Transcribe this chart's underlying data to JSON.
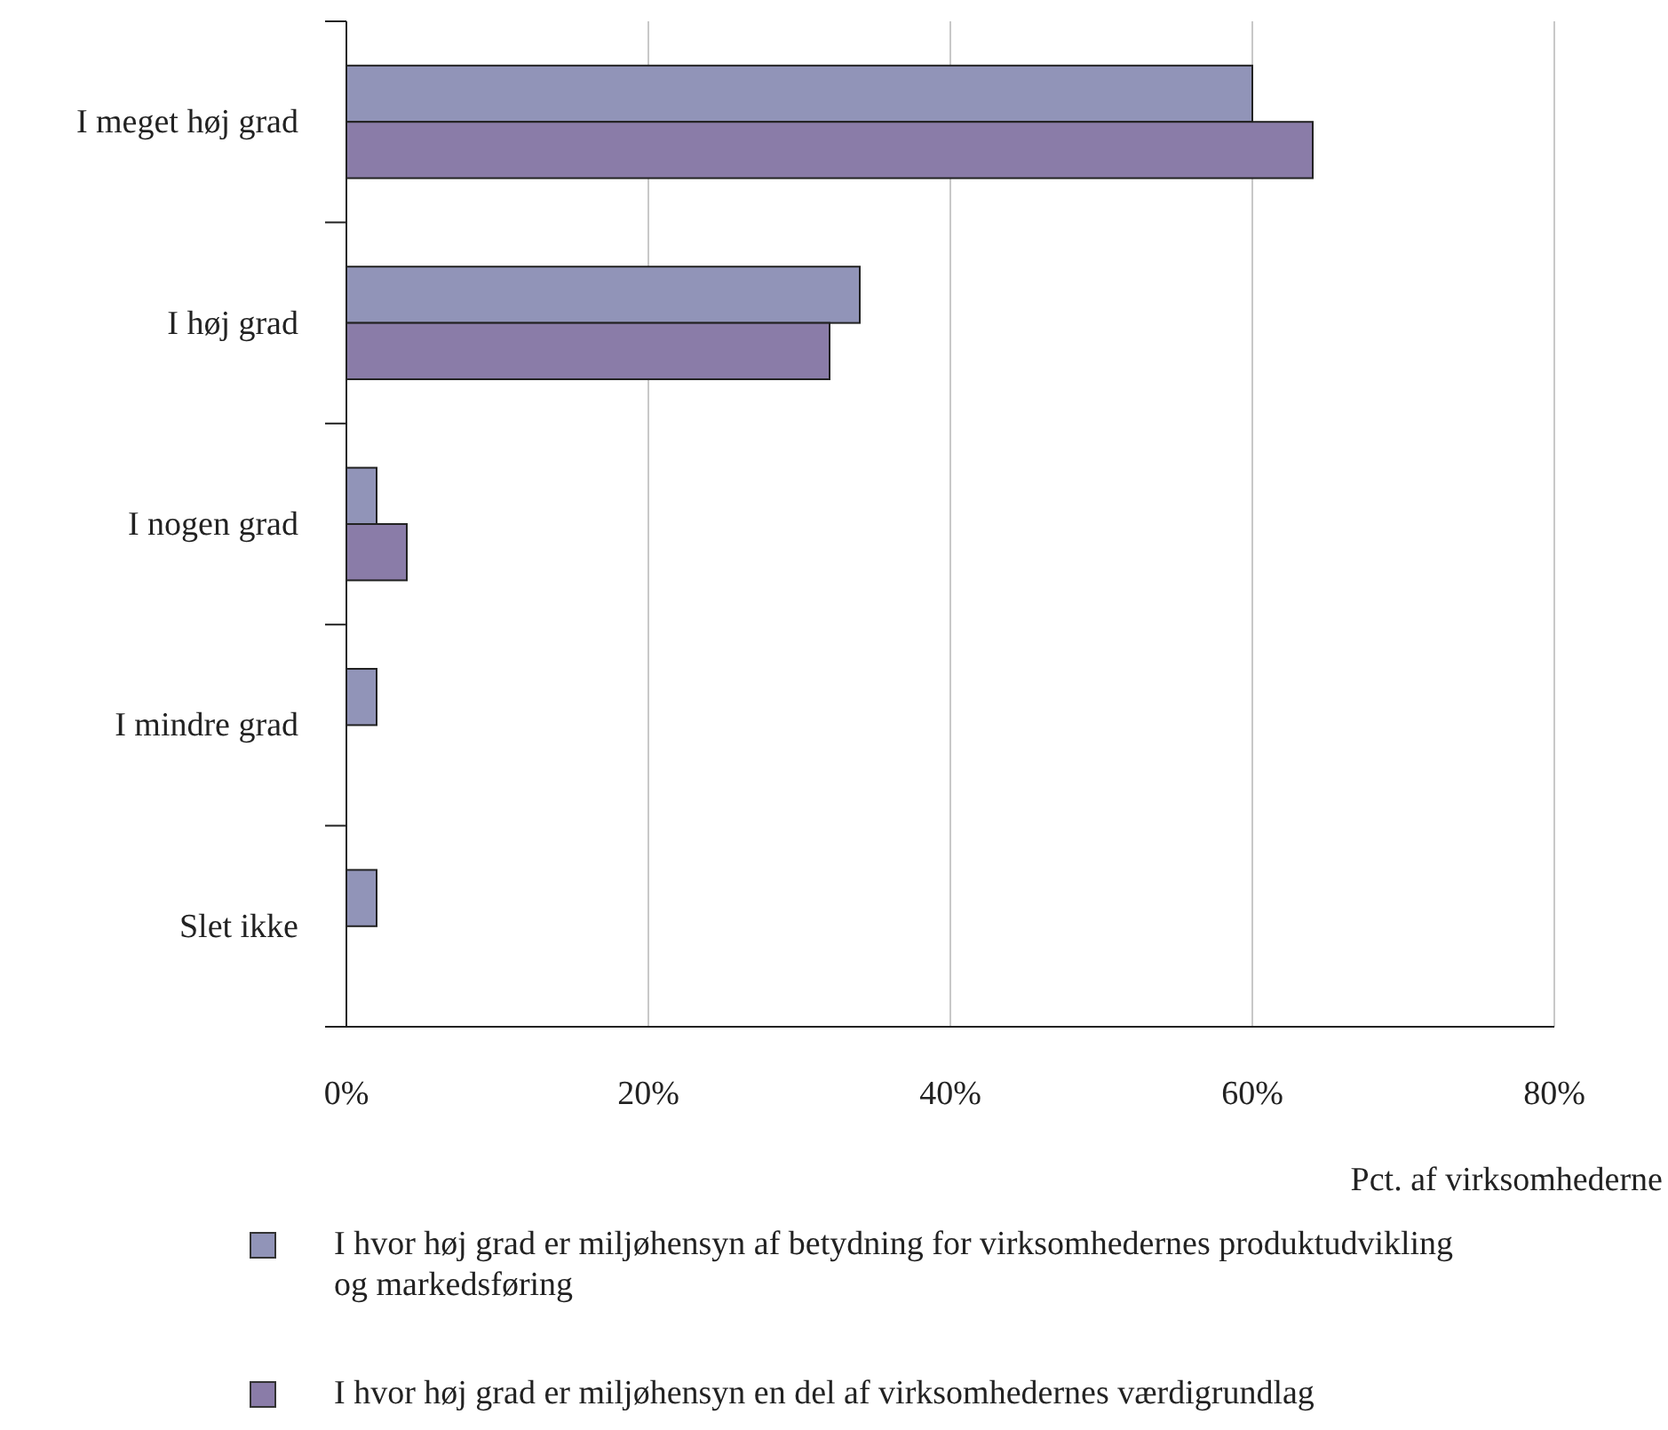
{
  "chart_data": {
    "type": "bar",
    "orientation": "horizontal",
    "categories": [
      "I meget høj grad",
      "I høj grad",
      "I nogen grad",
      "I mindre grad",
      "Slet ikke"
    ],
    "series": [
      {
        "name": "I hvor høj grad er miljøhensyn af betydning for virksomhedernes produktudvikling og markedsføring",
        "color": "#9194b8",
        "values": [
          60,
          34,
          2,
          2,
          2
        ]
      },
      {
        "name": "I hvor høj grad er miljøhensyn en del af virksomhedernes værdigrundlag",
        "color": "#8a7ca8",
        "values": [
          64,
          32,
          4,
          0,
          0
        ]
      }
    ],
    "xlim": [
      0,
      80
    ],
    "xticks": [
      {
        "value": 0,
        "label": "0%"
      },
      {
        "value": 20,
        "label": "20%"
      },
      {
        "value": 40,
        "label": "40%"
      },
      {
        "value": 60,
        "label": "60%"
      },
      {
        "value": 80,
        "label": "80%"
      }
    ],
    "xlabel": "Pct. af virksomhederne",
    "grid": "x",
    "legend": "bottom"
  }
}
